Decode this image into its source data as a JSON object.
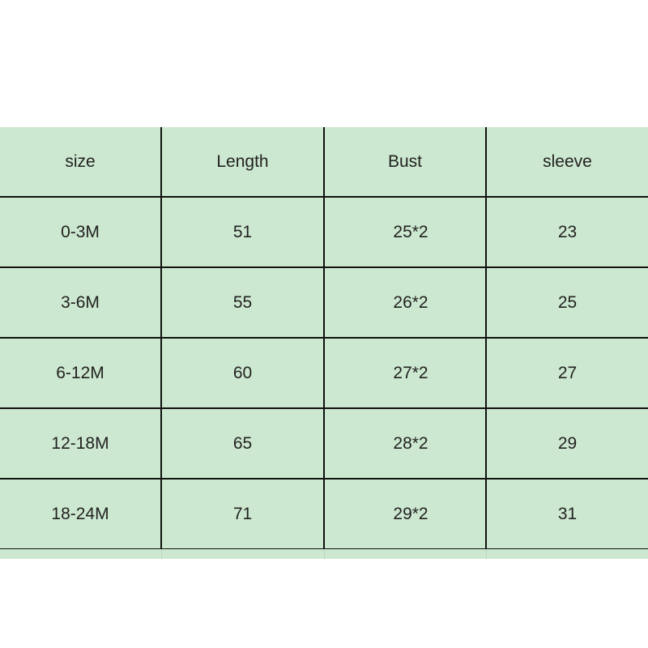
{
  "table": {
    "headers": [
      "size",
      "Length",
      "Bust",
      "sleeve"
    ],
    "rows": [
      [
        "0-3M",
        "51",
        "25*2",
        "23"
      ],
      [
        "3-6M",
        "55",
        "26*2",
        "25"
      ],
      [
        "6-12M",
        "60",
        "27*2",
        "27"
      ],
      [
        "12-18M",
        "65",
        "28*2",
        "29"
      ],
      [
        "18-24M",
        "71",
        "29*2",
        "31"
      ]
    ]
  },
  "colors": {
    "cell_background": "#cde8d0",
    "grid_line": "#111111"
  }
}
